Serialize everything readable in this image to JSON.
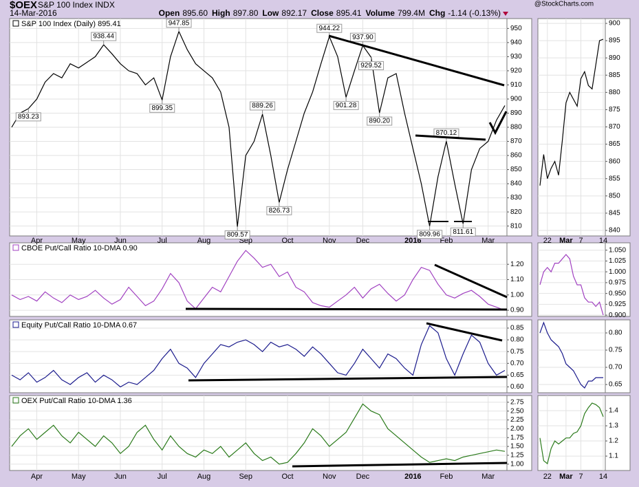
{
  "header": {
    "symbol": "$OEX",
    "name": "S&P 100 Index INDX",
    "date": "14-Mar-2016",
    "watermark": "@StockCharts.com",
    "quote": [
      {
        "label": "Open",
        "value": "895.60"
      },
      {
        "label": "High",
        "value": "897.80"
      },
      {
        "label": "Low",
        "value": "892.17"
      },
      {
        "label": "Close",
        "value": "895.41"
      },
      {
        "label": "Volume",
        "value": "799.4M"
      },
      {
        "label": "Chg",
        "value": "-1.14 (-0.13%)"
      }
    ]
  },
  "chart_data": [
    {
      "type": "line",
      "title": "S&P 100 Index (Daily) 895.41",
      "color": "#000000",
      "categories": [
        null,
        null,
        null,
        "Apr",
        null,
        null,
        null,
        null,
        "May",
        null,
        null,
        null,
        null,
        "Jun",
        null,
        null,
        null,
        null,
        "Jul",
        null,
        null,
        null,
        null,
        "Aug",
        null,
        null,
        null,
        null,
        "Sep",
        null,
        null,
        null,
        null,
        "Oct",
        null,
        null,
        null,
        null,
        "Nov",
        null,
        null,
        null,
        "Dec",
        null,
        null,
        null,
        null,
        null,
        "2016",
        null,
        null,
        null,
        "Feb",
        null,
        null,
        null,
        null,
        "Mar",
        null,
        null
      ],
      "values": [
        880,
        890,
        893.23,
        900,
        912,
        918,
        915,
        925,
        922,
        926,
        930,
        938.44,
        932,
        925,
        920,
        918,
        910,
        915,
        899.35,
        930,
        947.85,
        935,
        925,
        920,
        915,
        905,
        880,
        809.57,
        860,
        870,
        889.26,
        860,
        826.73,
        850,
        870,
        890,
        905,
        925,
        944.22,
        930,
        901.28,
        920,
        937.9,
        929.52,
        890.2,
        915,
        918,
        890,
        865,
        840,
        809.96,
        845,
        870.12,
        840,
        811.61,
        850,
        865,
        870,
        885,
        895.41
      ],
      "value_labels": [
        null,
        null,
        "893.23",
        null,
        null,
        null,
        null,
        null,
        null,
        null,
        null,
        "938.44",
        null,
        null,
        null,
        null,
        null,
        null,
        "899.35",
        null,
        "947.85",
        null,
        null,
        null,
        null,
        null,
        null,
        "809.57",
        null,
        null,
        "889.26",
        null,
        "826.73",
        null,
        null,
        null,
        null,
        null,
        "944.22",
        null,
        "901.28",
        null,
        "937.90",
        "929.52",
        "890.20",
        null,
        null,
        null,
        null,
        null,
        "809.96",
        null,
        "870.12",
        null,
        "811.61",
        null,
        null,
        null,
        null,
        null
      ],
      "ylim": [
        803,
        957
      ],
      "yticks": [
        810,
        820,
        830,
        840,
        850,
        860,
        870,
        880,
        890,
        900,
        910,
        920,
        930,
        940,
        950
      ],
      "grid": true
    },
    {
      "type": "line",
      "title": "CBOE Put/Call Ratio 10-DMA 0.90",
      "color": "#a040c0",
      "values": [
        1.0,
        0.97,
        0.99,
        0.96,
        1.02,
        0.98,
        0.95,
        1.0,
        0.97,
        0.99,
        1.03,
        0.98,
        0.94,
        0.97,
        1.05,
        0.99,
        0.93,
        0.96,
        1.04,
        1.14,
        1.08,
        0.96,
        0.91,
        0.98,
        1.05,
        1.02,
        1.12,
        1.22,
        1.29,
        1.24,
        1.18,
        1.2,
        1.12,
        1.15,
        1.05,
        1.02,
        0.95,
        0.93,
        0.92,
        0.96,
        1.0,
        1.05,
        0.98,
        1.04,
        1.07,
        1.01,
        0.96,
        1.0,
        1.1,
        1.18,
        1.16,
        1.07,
        1.0,
        0.98,
        1.01,
        1.03,
        0.99,
        0.94,
        0.92,
        0.9
      ],
      "ylim": [
        0.86,
        1.34
      ],
      "yticks": [
        {
          "value": 0.9,
          "label": "0.90"
        },
        {
          "value": 1.0,
          "label": "1.00"
        },
        {
          "value": 1.1,
          "label": "1.10"
        },
        {
          "value": 1.2,
          "label": "1.20"
        }
      ],
      "grid": true
    },
    {
      "type": "line",
      "title": "Equity Put/Call Ratio 10-DMA 0.67",
      "color": "#1a1a8c",
      "values": [
        0.65,
        0.63,
        0.66,
        0.62,
        0.64,
        0.67,
        0.63,
        0.61,
        0.64,
        0.66,
        0.62,
        0.65,
        0.63,
        0.6,
        0.62,
        0.61,
        0.64,
        0.67,
        0.72,
        0.76,
        0.7,
        0.68,
        0.64,
        0.7,
        0.74,
        0.78,
        0.77,
        0.79,
        0.8,
        0.78,
        0.75,
        0.79,
        0.77,
        0.78,
        0.76,
        0.73,
        0.77,
        0.74,
        0.7,
        0.66,
        0.65,
        0.7,
        0.76,
        0.72,
        0.68,
        0.74,
        0.72,
        0.68,
        0.65,
        0.78,
        0.86,
        0.83,
        0.72,
        0.65,
        0.74,
        0.82,
        0.79,
        0.7,
        0.65,
        0.67
      ],
      "ylim": [
        0.575,
        0.885
      ],
      "yticks": [
        {
          "value": 0.6,
          "label": "0.60"
        },
        0.65,
        {
          "value": 0.7,
          "label": "0.70"
        },
        0.75,
        {
          "value": 0.8,
          "label": "0.80"
        },
        0.85
      ],
      "grid": true
    },
    {
      "type": "line",
      "title": "OEX Put/Call Ratio 10-DMA 1.36",
      "color": "#2a7a1a",
      "categories": [
        null,
        null,
        null,
        "Apr",
        null,
        null,
        null,
        null,
        "May",
        null,
        null,
        null,
        null,
        "Jun",
        null,
        null,
        null,
        null,
        "Jul",
        null,
        null,
        null,
        null,
        "Aug",
        null,
        null,
        null,
        null,
        "Sep",
        null,
        null,
        null,
        null,
        "Oct",
        null,
        null,
        null,
        null,
        "Nov",
        null,
        null,
        null,
        "Dec",
        null,
        null,
        null,
        null,
        null,
        "2016",
        null,
        null,
        null,
        "Feb",
        null,
        null,
        null,
        null,
        "Mar",
        null,
        null
      ],
      "values": [
        1.5,
        1.8,
        2.0,
        1.7,
        1.9,
        2.1,
        1.8,
        1.6,
        1.9,
        1.7,
        1.5,
        1.8,
        1.6,
        1.3,
        1.5,
        1.9,
        2.1,
        1.7,
        1.4,
        1.8,
        1.5,
        1.3,
        1.2,
        1.4,
        1.3,
        1.5,
        1.2,
        1.4,
        1.6,
        1.3,
        1.1,
        1.2,
        1.0,
        1.05,
        1.3,
        1.6,
        2.0,
        1.8,
        1.5,
        1.7,
        1.9,
        2.3,
        2.7,
        2.5,
        2.4,
        2.0,
        1.8,
        1.6,
        1.4,
        1.2,
        1.05,
        1.1,
        1.15,
        1.1,
        1.2,
        1.25,
        1.3,
        1.35,
        1.4,
        1.36
      ],
      "ylim": [
        0.82,
        2.94
      ],
      "yticks": [
        {
          "value": 1.0,
          "label": "1.00"
        },
        1.25,
        {
          "value": 1.5,
          "label": "1.50"
        },
        1.75,
        {
          "value": 2.0,
          "label": "2.00"
        },
        2.25,
        {
          "value": 2.5,
          "label": "2.50"
        },
        2.75
      ],
      "grid": true
    },
    {
      "type": "line",
      "color": "#000000",
      "categories": [
        null,
        null,
        "22",
        null,
        null,
        null,
        null,
        "Mar",
        null,
        null,
        null,
        "7",
        null,
        null,
        null,
        null,
        null,
        "14"
      ],
      "values": [
        853,
        862,
        855,
        858,
        860,
        856,
        866,
        877,
        880,
        878,
        876,
        884,
        886,
        882,
        881,
        888,
        895,
        895.41
      ],
      "ylim": [
        838.4,
        901.4
      ],
      "yticks": [
        840,
        845,
        850,
        855,
        860,
        865,
        870,
        875,
        880,
        885,
        890,
        895,
        900
      ],
      "grid": true
    },
    {
      "type": "line",
      "color": "#a040c0",
      "values": [
        0.97,
        1.0,
        1.01,
        1.0,
        1.02,
        1.02,
        1.03,
        1.04,
        1.03,
        0.99,
        0.97,
        0.97,
        0.94,
        0.93,
        0.93,
        0.92,
        0.93,
        0.9
      ],
      "ylim": [
        0.897,
        1.067
      ],
      "yticks": [
        {
          "value": 0.9,
          "label": "0.900"
        },
        0.925,
        {
          "value": 0.95,
          "label": "0.950"
        },
        0.975,
        {
          "value": 1.0,
          "label": "1.000"
        },
        1.025,
        {
          "value": 1.05,
          "label": "1.050"
        }
      ],
      "grid": true
    },
    {
      "type": "line",
      "color": "#1a1a8c",
      "values": [
        0.8,
        0.83,
        0.8,
        0.78,
        0.77,
        0.76,
        0.74,
        0.71,
        0.7,
        0.69,
        0.67,
        0.65,
        0.64,
        0.66,
        0.66,
        0.67,
        0.67,
        0.67
      ],
      "ylim": [
        0.626,
        0.838
      ],
      "yticks": [
        0.65,
        {
          "value": 0.7,
          "label": "0.70"
        },
        0.75,
        {
          "value": 0.8,
          "label": "0.80"
        }
      ],
      "grid": true
    },
    {
      "type": "line",
      "color": "#2a7a1a",
      "categories": [
        null,
        null,
        "22",
        null,
        null,
        null,
        null,
        "Mar",
        null,
        null,
        null,
        "7",
        null,
        null,
        null,
        null,
        null,
        "14"
      ],
      "values": [
        1.22,
        1.07,
        1.05,
        1.15,
        1.2,
        1.18,
        1.2,
        1.22,
        1.22,
        1.25,
        1.26,
        1.3,
        1.38,
        1.42,
        1.45,
        1.44,
        1.42,
        1.36
      ],
      "ylim": [
        1.005,
        1.5
      ],
      "yticks": [
        1.1,
        1.2,
        1.3,
        1.4
      ],
      "grid": true
    }
  ]
}
